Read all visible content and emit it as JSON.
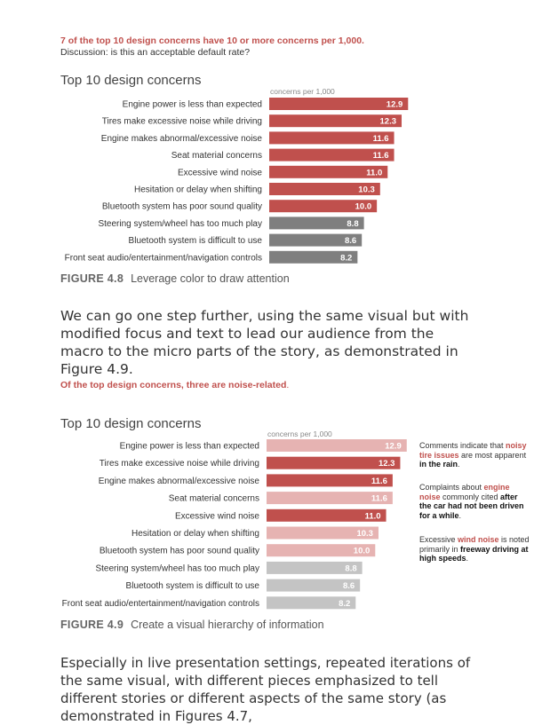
{
  "headline": {
    "red": "7 of the top 10 design concerns have 10 or more concerns per 1,000.",
    "sub": "Discussion: is this an acceptable default rate?"
  },
  "paragraph1": "We can go one step further, using the same visual but with modified focus and text to lead our audience from the macro to the micro parts of the story, as demonstrated in Figure 4.9.",
  "headline2": {
    "part1": "Of the top design concerns, three are noise-related",
    "part2": "."
  },
  "paragraph2": "Especially in live presentation settings, repeated iterations of the same visual, with different pieces emphasized to tell different stories or different aspects of the same story (as demonstrated in Figures 4.7,",
  "figures": [
    {
      "label": "FIGURE 4.8",
      "text": "Leverage color to draw attention"
    },
    {
      "label": "FIGURE 4.9",
      "text": "Create a visual hierarchy of information"
    }
  ],
  "notes": {
    "n1": {
      "a": "Comments indicate that ",
      "b": "noisy tire issues",
      "c": " are most apparent ",
      "d": "in the rain",
      "e": "."
    },
    "n2": {
      "a": "Complaints about ",
      "b": "engine noise",
      "c": " commonly cited ",
      "d": "after the car had not been driven for a while",
      "e": "."
    },
    "n3": {
      "a": "Excessive ",
      "b": "wind noise",
      "c": " is noted primarily in ",
      "d": "freeway driving at high speeds",
      "e": "."
    }
  },
  "colors": {
    "red": "#c0504d",
    "light_red": "#e6b3b2",
    "gray": "#7f7f7f",
    "light_gray": "#c4c4c4"
  },
  "chart_data": [
    {
      "type": "bar",
      "orientation": "horizontal",
      "title": "Top 10 design concerns",
      "xlabel": "concerns per 1,000",
      "xlim": [
        0,
        13
      ],
      "categories": [
        "Engine power is less than expected",
        "Tires make excessive noise while driving",
        "Engine makes abnormal/excessive noise",
        "Seat material concerns",
        "Excessive wind noise",
        "Hesitation or delay when shifting",
        "Bluetooth system has poor sound quality",
        "Steering system/wheel has too much play",
        "Bluetooth system is difficult to use",
        "Front seat audio/entertainment/navigation controls"
      ],
      "values": [
        12.9,
        12.3,
        11.6,
        11.6,
        11.0,
        10.3,
        10.0,
        8.8,
        8.6,
        8.2
      ],
      "bar_colors": [
        "#c0504d",
        "#c0504d",
        "#c0504d",
        "#c0504d",
        "#c0504d",
        "#c0504d",
        "#c0504d",
        "#7f7f7f",
        "#7f7f7f",
        "#7f7f7f"
      ],
      "label_colors": [
        "#ffffff",
        "#ffffff",
        "#ffffff",
        "#ffffff",
        "#ffffff",
        "#ffffff",
        "#ffffff",
        "#ffffff",
        "#ffffff",
        "#ffffff"
      ]
    },
    {
      "type": "bar",
      "orientation": "horizontal",
      "title": "Top 10 design concerns",
      "xlabel": "concerns per 1,000",
      "xlim": [
        0,
        13
      ],
      "categories": [
        "Engine power is less than expected",
        "Tires make excessive noise while driving",
        "Engine makes abnormal/excessive noise",
        "Seat material concerns",
        "Excessive wind noise",
        "Hesitation or delay when shifting",
        "Bluetooth system has poor sound quality",
        "Steering system/wheel has too much play",
        "Bluetooth system is difficult to use",
        "Front seat audio/entertainment/navigation controls"
      ],
      "values": [
        12.9,
        12.3,
        11.6,
        11.6,
        11.0,
        10.3,
        10.0,
        8.8,
        8.6,
        8.2
      ],
      "bar_colors": [
        "#e6b3b2",
        "#c0504d",
        "#c0504d",
        "#e6b3b2",
        "#c0504d",
        "#e6b3b2",
        "#e6b3b2",
        "#c4c4c4",
        "#c4c4c4",
        "#c4c4c4"
      ],
      "label_colors": [
        "#ffffff",
        "#ffffff",
        "#ffffff",
        "#ffffff",
        "#ffffff",
        "#ffffff",
        "#ffffff",
        "#ffffff",
        "#ffffff",
        "#ffffff"
      ]
    }
  ]
}
